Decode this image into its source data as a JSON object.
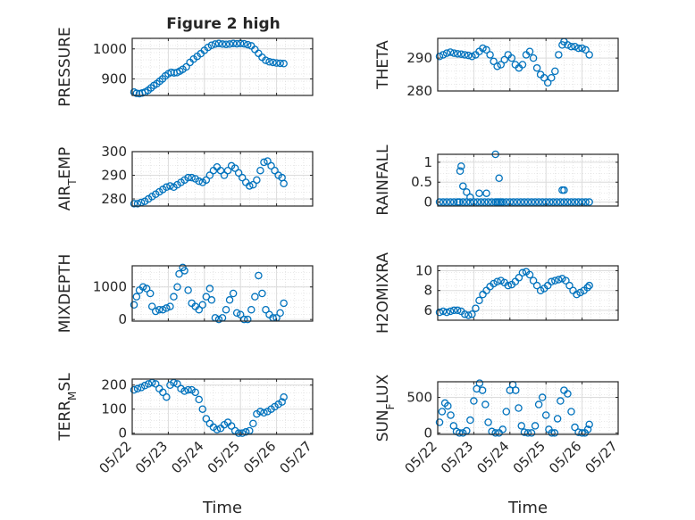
{
  "figure_title": "Figure 2 high",
  "marker_color": "#0072BD",
  "chart_data": [
    {
      "type": "scatter",
      "panel": "top-left",
      "title": "Figure 2 high",
      "ylabel": "PRESSURE",
      "ylim": [
        845,
        1035
      ],
      "yticks": [
        900,
        1000
      ],
      "yticklabels": [
        "900",
        "1000"
      ],
      "xlabel": "",
      "grid": "on",
      "series": [
        {
          "x": [
            0.05,
            0.12,
            0.2,
            0.28,
            0.36,
            0.44,
            0.52,
            0.6,
            0.68,
            0.76,
            0.84,
            0.92,
            1.0,
            1.08,
            1.16,
            1.24,
            1.32,
            1.4,
            1.5,
            1.6,
            1.7,
            1.8,
            1.9,
            2.0,
            2.1,
            2.2,
            2.3,
            2.4,
            2.5,
            2.6,
            2.7,
            2.8,
            2.9,
            3.0,
            3.1,
            3.2,
            3.3,
            3.4,
            3.5,
            3.6,
            3.7,
            3.8,
            3.9,
            4.0,
            4.1,
            4.2
          ],
          "y": [
            856,
            852,
            851,
            853,
            856,
            862,
            870,
            878,
            884,
            892,
            900,
            910,
            917,
            922,
            920,
            921,
            926,
            932,
            940,
            955,
            966,
            975,
            984,
            995,
            1005,
            1012,
            1016,
            1018,
            1016,
            1015,
            1016,
            1018,
            1017,
            1018,
            1017,
            1014,
            1010,
            998,
            985,
            972,
            962,
            957,
            955,
            953,
            952,
            951
          ]
        }
      ]
    },
    {
      "type": "scatter",
      "panel": "top-right",
      "ylabel": "THETA",
      "ylim": [
        280,
        296
      ],
      "yticks": [
        280,
        290
      ],
      "yticklabels": [
        "280",
        "290"
      ],
      "xlabel": "",
      "grid": "on",
      "series": [
        {
          "x": [
            0.05,
            0.15,
            0.25,
            0.35,
            0.45,
            0.55,
            0.65,
            0.75,
            0.85,
            0.95,
            1.05,
            1.15,
            1.25,
            1.35,
            1.45,
            1.55,
            1.65,
            1.75,
            1.85,
            1.95,
            2.05,
            2.15,
            2.25,
            2.35,
            2.45,
            2.55,
            2.65,
            2.75,
            2.85,
            2.95,
            3.05,
            3.15,
            3.25,
            3.35,
            3.45,
            3.5,
            3.6,
            3.7,
            3.8,
            3.9,
            4.0,
            4.1,
            4.2
          ],
          "y": [
            290.5,
            291,
            291.5,
            291.8,
            291.5,
            291.3,
            291.2,
            291,
            290.8,
            290.5,
            291,
            292,
            293,
            292.5,
            291,
            289,
            287.5,
            288,
            289.5,
            291,
            290,
            288,
            287,
            288,
            291,
            292,
            290,
            287,
            285,
            284,
            282.5,
            284,
            286,
            291,
            294,
            295,
            294,
            293.5,
            293.5,
            293,
            293,
            292.5,
            291
          ]
        }
      ]
    },
    {
      "type": "scatter",
      "panel": "second-left",
      "ylabel": "AIR_TEMP",
      "ylim": [
        277,
        300
      ],
      "yticks": [
        280,
        290,
        300
      ],
      "yticklabels": [
        "280",
        "290",
        "300"
      ],
      "xlabel": "",
      "grid": "on",
      "series": [
        {
          "x": [
            0.05,
            0.15,
            0.25,
            0.35,
            0.45,
            0.55,
            0.65,
            0.75,
            0.85,
            0.95,
            1.05,
            1.15,
            1.25,
            1.35,
            1.45,
            1.55,
            1.65,
            1.75,
            1.85,
            1.95,
            2.05,
            2.15,
            2.25,
            2.35,
            2.45,
            2.55,
            2.65,
            2.75,
            2.85,
            2.95,
            3.05,
            3.15,
            3.25,
            3.35,
            3.45,
            3.55,
            3.65,
            3.75,
            3.85,
            3.95,
            4.05,
            4.15,
            4.2
          ],
          "y": [
            278,
            278,
            278.5,
            279,
            280,
            281,
            282,
            283,
            284,
            285,
            285.5,
            285,
            286,
            287,
            288,
            289,
            289,
            288.5,
            287.5,
            287,
            288,
            290,
            292,
            293.5,
            292,
            290,
            292,
            294,
            293,
            291,
            289,
            287,
            285.5,
            286,
            288,
            292,
            295.5,
            296,
            294,
            292,
            290,
            289,
            286.5
          ]
        }
      ]
    },
    {
      "type": "scatter",
      "panel": "second-right",
      "ylabel": "RAINFALL",
      "ylim": [
        -0.1,
        1.2
      ],
      "yticks": [
        0,
        0.5,
        1
      ],
      "yticklabels": [
        "0",
        "0.5",
        "1"
      ],
      "xlabel": "",
      "grid": "on",
      "series": [
        {
          "x": [
            0.05,
            0.15,
            0.25,
            0.35,
            0.45,
            0.55,
            0.6,
            0.7,
            0.8,
            0.9,
            1.0,
            1.1,
            1.2,
            1.3,
            1.4,
            1.5,
            1.6,
            1.65,
            1.7,
            1.75,
            1.8,
            1.9,
            2.0,
            2.1,
            2.2,
            2.3,
            2.4,
            2.5,
            2.6,
            2.7,
            2.8,
            2.9,
            3.0,
            3.1,
            3.2,
            3.3,
            3.4,
            3.5,
            3.6,
            3.7,
            3.8,
            3.9,
            4.0,
            4.1,
            4.2,
            0.62,
            0.65,
            0.7,
            0.8,
            0.9,
            1.15,
            1.6,
            1.7,
            1.35,
            3.45,
            3.5
          ],
          "y": [
            0,
            0,
            0,
            0,
            0,
            0,
            0,
            0,
            0,
            0,
            0,
            0,
            0,
            0,
            0,
            0,
            0,
            0,
            0,
            0,
            0,
            0,
            0,
            0,
            0,
            0,
            0,
            0,
            0,
            0,
            0,
            0,
            0,
            0,
            0,
            0,
            0,
            0,
            0,
            0,
            0,
            0,
            0,
            0,
            0,
            0.78,
            0.9,
            0.4,
            0.25,
            0.12,
            0.22,
            1.2,
            0.6,
            0.22,
            0.3,
            0.3
          ]
        }
      ]
    },
    {
      "type": "scatter",
      "panel": "third-left",
      "ylabel": "MIXDEPTH",
      "ylim": [
        -50,
        1650
      ],
      "yticks": [
        0,
        1000
      ],
      "yticklabels": [
        "0",
        "1000"
      ],
      "xlabel": "",
      "grid": "on",
      "series": [
        {
          "x": [
            0.05,
            0.12,
            0.2,
            0.3,
            0.4,
            0.5,
            0.55,
            0.65,
            0.75,
            0.85,
            0.95,
            1.05,
            1.15,
            1.25,
            1.3,
            1.4,
            1.45,
            1.55,
            1.65,
            1.75,
            1.85,
            1.95,
            2.05,
            2.15,
            2.2,
            2.3,
            2.4,
            2.5,
            2.6,
            2.7,
            2.8,
            2.9,
            3.0,
            3.1,
            3.2,
            3.3,
            3.4,
            3.5,
            3.6,
            3.7,
            3.8,
            3.9,
            4.0,
            4.1,
            4.2
          ],
          "y": [
            450,
            700,
            900,
            1000,
            950,
            800,
            400,
            250,
            300,
            300,
            350,
            400,
            700,
            1000,
            1400,
            1600,
            1500,
            900,
            500,
            400,
            300,
            450,
            700,
            950,
            600,
            50,
            0,
            50,
            300,
            600,
            800,
            200,
            150,
            0,
            0,
            300,
            700,
            1350,
            800,
            300,
            150,
            50,
            50,
            200,
            500
          ]
        }
      ]
    },
    {
      "type": "scatter",
      "panel": "third-right",
      "ylabel": "H2OMIXRA",
      "ylim": [
        5,
        10.5
      ],
      "yticks": [
        6,
        8,
        10
      ],
      "yticklabels": [
        "6",
        "8",
        "10"
      ],
      "xlabel": "",
      "grid": "on",
      "series": [
        {
          "x": [
            0.05,
            0.15,
            0.25,
            0.35,
            0.45,
            0.55,
            0.65,
            0.75,
            0.85,
            0.95,
            1.05,
            1.15,
            1.25,
            1.35,
            1.45,
            1.55,
            1.65,
            1.75,
            1.85,
            1.95,
            2.05,
            2.15,
            2.25,
            2.35,
            2.45,
            2.55,
            2.65,
            2.75,
            2.85,
            2.95,
            3.05,
            3.15,
            3.25,
            3.35,
            3.45,
            3.55,
            3.65,
            3.75,
            3.85,
            3.95,
            4.05,
            4.15,
            4.2
          ],
          "y": [
            5.8,
            5.9,
            5.8,
            5.9,
            6.0,
            6.0,
            5.9,
            5.6,
            5.5,
            5.6,
            6.2,
            7.0,
            7.6,
            8.0,
            8.4,
            8.7,
            8.9,
            9.0,
            8.8,
            8.5,
            8.6,
            8.9,
            9.3,
            9.8,
            9.9,
            9.6,
            9.0,
            8.5,
            8.0,
            8.2,
            8.5,
            8.9,
            9.0,
            9.1,
            9.2,
            9.0,
            8.5,
            8.0,
            7.6,
            7.8,
            8.0,
            8.3,
            8.5
          ]
        }
      ]
    },
    {
      "type": "scatter",
      "panel": "bottom-left",
      "ylabel": "TERR_MSL",
      "ylim": [
        -5,
        225
      ],
      "yticks": [
        0,
        100,
        200
      ],
      "yticklabels": [
        "0",
        "100",
        "200"
      ],
      "xlabel": "Time",
      "grid": "on",
      "xticklabels": [
        "05/22",
        "05/23",
        "05/24",
        "05/25",
        "05/26",
        "05/27"
      ],
      "series": [
        {
          "x": [
            0.05,
            0.15,
            0.25,
            0.35,
            0.45,
            0.55,
            0.65,
            0.75,
            0.85,
            0.95,
            1.05,
            1.15,
            1.25,
            1.35,
            1.45,
            1.55,
            1.65,
            1.75,
            1.85,
            1.95,
            2.05,
            2.15,
            2.25,
            2.35,
            2.45,
            2.55,
            2.65,
            2.75,
            2.85,
            2.95,
            3.05,
            3.15,
            3.25,
            3.35,
            3.45,
            3.55,
            3.65,
            3.75,
            3.85,
            3.95,
            4.05,
            4.15,
            4.2
          ],
          "y": [
            180,
            185,
            190,
            198,
            205,
            210,
            205,
            185,
            170,
            150,
            200,
            210,
            205,
            185,
            175,
            180,
            180,
            170,
            140,
            100,
            60,
            40,
            25,
            15,
            20,
            35,
            45,
            30,
            10,
            0,
            0,
            5,
            10,
            40,
            80,
            90,
            85,
            90,
            100,
            110,
            120,
            130,
            150
          ]
        }
      ]
    },
    {
      "type": "scatter",
      "panel": "bottom-right",
      "ylabel": "SUN_FLUX",
      "ylim": [
        -20,
        720
      ],
      "yticks": [
        0,
        500
      ],
      "yticklabels": [
        "0",
        "500"
      ],
      "xlabel": "Time",
      "grid": "on",
      "xticklabels": [
        "05/22",
        "05/23",
        "05/24",
        "05/25",
        "05/26",
        "05/27"
      ],
      "series": [
        {
          "x": [
            0.05,
            0.12,
            0.2,
            0.28,
            0.36,
            0.44,
            0.52,
            0.6,
            0.7,
            0.8,
            0.9,
            1.0,
            1.08,
            1.16,
            1.24,
            1.32,
            1.4,
            1.5,
            1.6,
            1.7,
            1.8,
            1.9,
            2.0,
            2.08,
            2.16,
            2.24,
            2.32,
            2.4,
            2.5,
            2.6,
            2.7,
            2.8,
            2.9,
            3.0,
            3.08,
            3.16,
            3.24,
            3.32,
            3.4,
            3.5,
            3.6,
            3.7,
            3.8,
            3.9,
            4.0,
            4.08,
            4.16,
            4.2
          ],
          "y": [
            150,
            300,
            420,
            380,
            250,
            100,
            20,
            0,
            0,
            30,
            180,
            450,
            620,
            700,
            600,
            400,
            150,
            20,
            0,
            0,
            50,
            300,
            600,
            680,
            600,
            350,
            100,
            10,
            0,
            0,
            100,
            400,
            500,
            250,
            50,
            0,
            0,
            200,
            450,
            600,
            550,
            300,
            80,
            10,
            0,
            0,
            50,
            120
          ]
        }
      ]
    }
  ]
}
